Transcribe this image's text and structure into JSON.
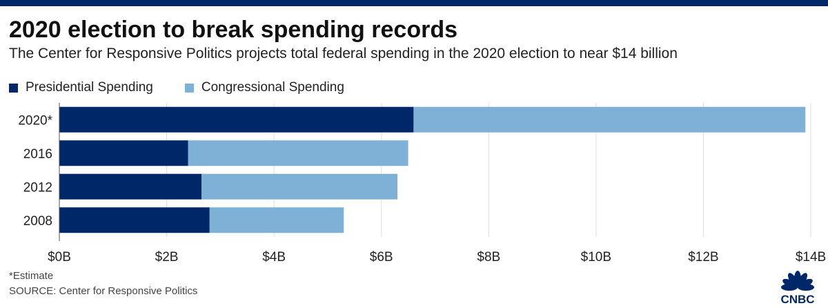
{
  "header": {
    "title": "2020 election to break spending records",
    "subtitle": "The Center for Responsive Politics projects total federal spending in the 2020 election to near $14 billion"
  },
  "footer": {
    "note": "*Estimate",
    "source": "SOURCE: Center for Responsive Politics"
  },
  "logo": {
    "text": "CNBC"
  },
  "colors": {
    "presidential": "#002868",
    "congressional": "#7fb0d6",
    "grid": "#dddddd",
    "topbar": "#002868"
  },
  "chart_data": {
    "type": "bar",
    "orientation": "horizontal",
    "stacked": true,
    "categories": [
      "2020*",
      "2016",
      "2012",
      "2008"
    ],
    "series": [
      {
        "name": "Presidential Spending",
        "values": [
          6.6,
          2.4,
          2.65,
          2.8
        ]
      },
      {
        "name": "Congressional Spending",
        "values": [
          7.3,
          4.1,
          3.65,
          2.5
        ]
      }
    ],
    "xlim": [
      0,
      14
    ],
    "xticks": [
      0,
      2,
      4,
      6,
      8,
      10,
      12,
      14
    ],
    "xtick_labels": [
      "$0B",
      "$2B",
      "$4B",
      "$6B",
      "$8B",
      "$10B",
      "$12B",
      "$14B"
    ],
    "grid": true,
    "legend": "top-left"
  }
}
